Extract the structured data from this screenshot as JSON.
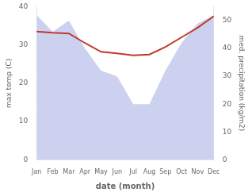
{
  "chart_data": {
    "type": "line",
    "xlabel": "date (month)",
    "ylabel": "max temp (C)",
    "y2label": "med. precipitation (kg/m2)",
    "categories": [
      "Jan",
      "Feb",
      "Mar",
      "Apr",
      "May",
      "Jun",
      "Jul",
      "Aug",
      "Sep",
      "Oct",
      "Nov",
      "Dec"
    ],
    "series": [
      {
        "type": "area",
        "axis": "y2",
        "color": "#b0b8e8",
        "values": [
          52,
          46,
          50,
          40,
          32,
          30,
          20,
          20,
          32,
          42,
          49,
          52
        ]
      },
      {
        "type": "line",
        "color": "#c0392b",
        "values": [
          33.5,
          33.2,
          33.0,
          30.5,
          28.2,
          27.8,
          27.3,
          27.5,
          29.5,
          32.0,
          34.5,
          37.5
        ]
      }
    ],
    "ylim": [
      0,
      40
    ],
    "yticks": [
      0,
      10,
      20,
      30,
      40
    ],
    "y2lim": [
      0,
      55
    ],
    "y2ticks": [
      0,
      10,
      20,
      30,
      40,
      50
    ],
    "grid": false
  }
}
